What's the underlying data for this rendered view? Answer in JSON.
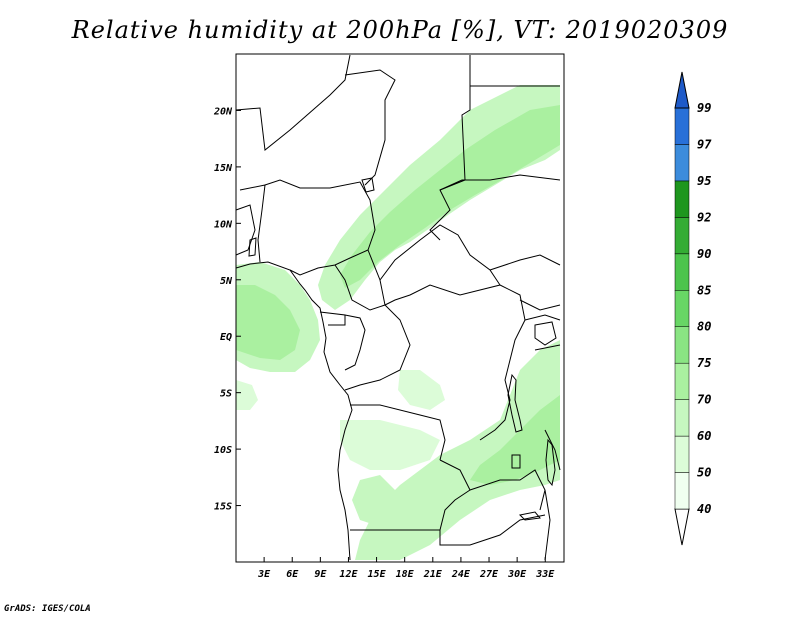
{
  "title": "Relative humidity at 200hPa [%], VT: 2019020309",
  "footer": "GrADS: IGES/COLA",
  "map": {
    "lon_labels": [
      "3E",
      "6E",
      "9E",
      "12E",
      "15E",
      "18E",
      "21E",
      "24E",
      "27E",
      "30E",
      "33E"
    ],
    "lat_labels": [
      "20N",
      "15N",
      "10N",
      "5N",
      "EQ",
      "5S",
      "10S",
      "15S"
    ],
    "lon_values": [
      3,
      6,
      9,
      12,
      15,
      18,
      21,
      24,
      27,
      30,
      33
    ],
    "lat_values": [
      20,
      15,
      10,
      5,
      0,
      -5,
      -10,
      -15
    ],
    "lon_range": [
      0,
      35
    ],
    "lat_range": [
      -20,
      25
    ]
  },
  "colorbar": {
    "levels": [
      "40",
      "50",
      "60",
      "70",
      "75",
      "80",
      "85",
      "90",
      "92",
      "95",
      "97",
      "99"
    ],
    "colors": [
      "#f0fff0",
      "#dcfcd8",
      "#c6f7c0",
      "#aaf0a0",
      "#8ae483",
      "#68d665",
      "#4cc44c",
      "#34ac34",
      "#1e961e",
      "#3c8cdc",
      "#2870d8",
      "#1e5ac8"
    ]
  }
}
